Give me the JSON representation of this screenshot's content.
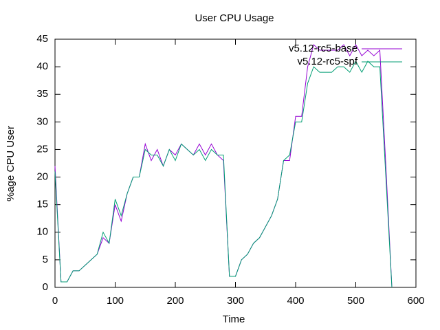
{
  "chart_data": {
    "type": "line",
    "title": "User CPU Usage",
    "xlabel": "Time",
    "ylabel": "%age CPU User",
    "x": [
      0,
      10,
      20,
      30,
      40,
      50,
      60,
      70,
      80,
      90,
      100,
      110,
      120,
      130,
      140,
      150,
      160,
      170,
      180,
      190,
      200,
      210,
      220,
      230,
      240,
      250,
      260,
      270,
      280,
      290,
      300,
      310,
      320,
      330,
      340,
      350,
      360,
      370,
      380,
      390,
      400,
      410,
      420,
      430,
      440,
      450,
      460,
      470,
      480,
      490,
      500,
      510,
      520,
      530,
      540,
      550,
      560
    ],
    "series": [
      {
        "name": "v5.12-rc5-base",
        "color": "#9400d3",
        "values": [
          22,
          1,
          1,
          3,
          3,
          4,
          5,
          6,
          9,
          8,
          15,
          12,
          17,
          20,
          20,
          26,
          23,
          25,
          22,
          25,
          24,
          26,
          25,
          24,
          26,
          24,
          26,
          24,
          23,
          2,
          2,
          5,
          6,
          8,
          9,
          11,
          13,
          16,
          23,
          23,
          31,
          31,
          40,
          44,
          43,
          43,
          43,
          43,
          44,
          42,
          44,
          42,
          43,
          42,
          43,
          22,
          0
        ]
      },
      {
        "name": "v5.12-rc5-spf",
        "color": "#009e73",
        "values": [
          21,
          1,
          1,
          3,
          3,
          4,
          5,
          6,
          10,
          8,
          16,
          13,
          17,
          20,
          20,
          25,
          24,
          24,
          22,
          25,
          23,
          26,
          25,
          24,
          25,
          23,
          25,
          24,
          24,
          2,
          2,
          5,
          6,
          8,
          9,
          11,
          13,
          16,
          23,
          24,
          30,
          30,
          37,
          40,
          39,
          39,
          39,
          40,
          40,
          39,
          41,
          39,
          41,
          40,
          40,
          20,
          0
        ]
      }
    ],
    "xlim": [
      0,
      600
    ],
    "xticks": [
      0,
      100,
      200,
      300,
      400,
      500,
      600
    ],
    "ylim": [
      0,
      45
    ],
    "yticks": [
      0,
      5,
      10,
      15,
      20,
      25,
      30,
      35,
      40,
      45
    ],
    "legend": "top right"
  }
}
